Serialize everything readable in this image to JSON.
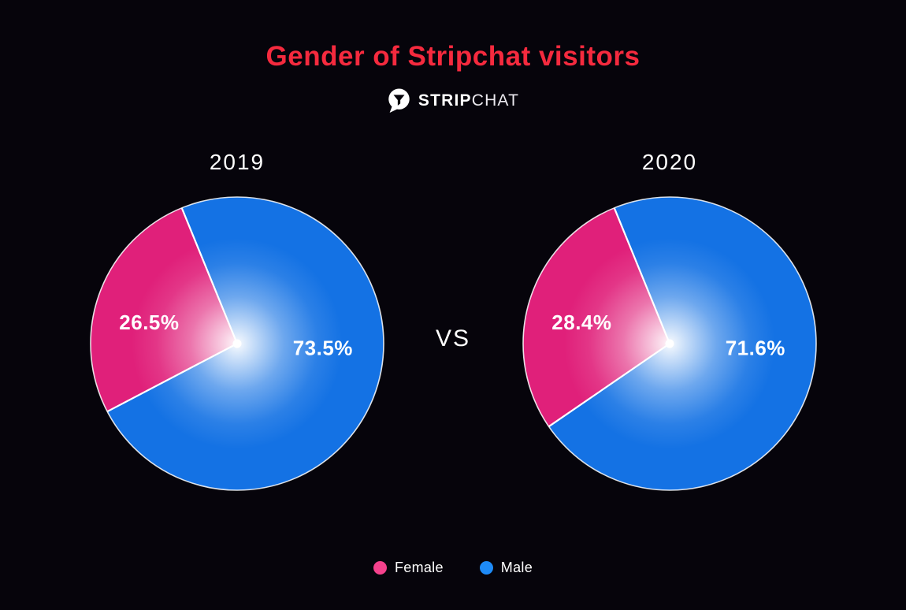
{
  "title": "Gender of Stripchat visitors",
  "logo": {
    "brand_strip": "STRIP",
    "brand_chat": "CHAT",
    "icon": "stripchat-speech-bubble-funnel"
  },
  "vs_label": "VS",
  "colors": {
    "background": "#06040b",
    "title_red": "#f52a3e",
    "female_pink": "#e0207a",
    "male_blue": "#1472e4",
    "legend_female_pink": "#f4418c",
    "legend_male_blue": "#1e8bf7",
    "text_white": "#ffffff",
    "slice_divider": "#ffffff"
  },
  "legend": {
    "position": "bottom-center",
    "items": [
      {
        "label": "Female",
        "color": "#f4418c"
      },
      {
        "label": "Male",
        "color": "#1e8bf7"
      }
    ]
  },
  "chart_data": [
    {
      "type": "pie",
      "title": "2019",
      "categories": [
        "Female",
        "Male"
      ],
      "values": [
        26.5,
        73.5
      ],
      "display_labels": [
        "26.5%",
        "73.5%"
      ],
      "colors": [
        "#e0207a",
        "#1472e4"
      ],
      "female_end_angle_deg": 337.8,
      "center_dot": true,
      "center_glow": true,
      "outline": "white"
    },
    {
      "type": "pie",
      "title": "2020",
      "categories": [
        "Female",
        "Male"
      ],
      "values": [
        28.4,
        71.6
      ],
      "display_labels": [
        "28.4%",
        "71.6%"
      ],
      "colors": [
        "#e0207a",
        "#1472e4"
      ],
      "female_end_angle_deg": 337.8,
      "center_dot": true,
      "center_glow": true,
      "outline": "white"
    }
  ]
}
